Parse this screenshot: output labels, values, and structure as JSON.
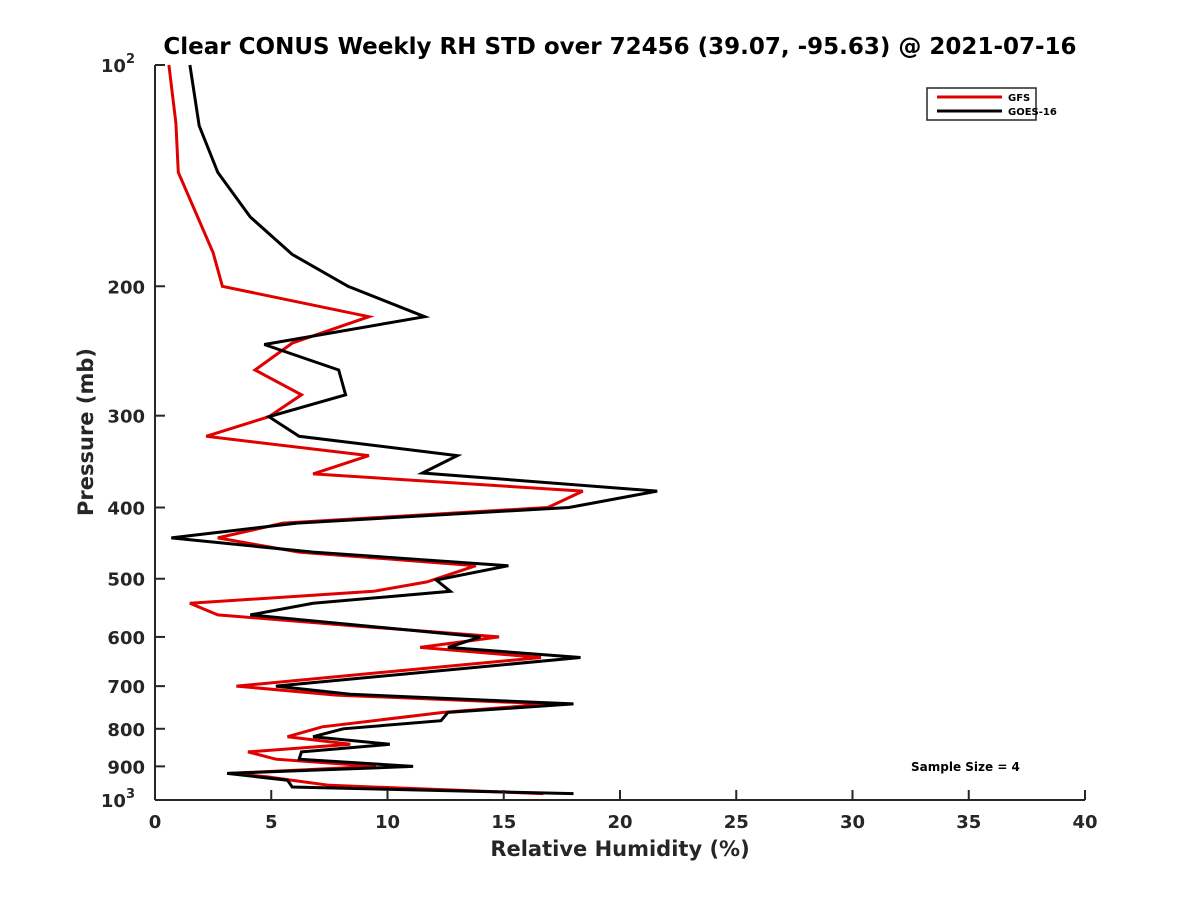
{
  "chart_data": {
    "type": "line",
    "title": "Clear CONUS Weekly RH STD over 72456 (39.07, -95.63) @ 2021-07-16",
    "xlabel": "Relative Humidity (%)",
    "ylabel": "Pressure (mb)",
    "xlim": [
      0,
      40
    ],
    "ylim": [
      100,
      1000
    ],
    "yscale": "log",
    "yreversed": true,
    "grid": false,
    "legend_position": "top-right",
    "x_ticks": [
      0,
      5,
      10,
      15,
      20,
      25,
      30,
      35,
      40
    ],
    "x_tick_labels": [
      "0",
      "5",
      "10",
      "15",
      "20",
      "25",
      "30",
      "35",
      "40"
    ],
    "y_ticks": [
      100,
      200,
      300,
      400,
      500,
      600,
      700,
      800,
      900,
      1000
    ],
    "y_tick_labels": [
      "10^2",
      "200",
      "300",
      "400",
      "500",
      "600",
      "700",
      "800",
      "900",
      "10^3"
    ],
    "annotation": "Sample Size = 4",
    "series": [
      {
        "name": "GFS",
        "color": "#e00000",
        "points": [
          [
            0.6,
            100
          ],
          [
            0.9,
            120
          ],
          [
            1.0,
            140
          ],
          [
            2.5,
            180
          ],
          [
            2.9,
            200
          ],
          [
            9.2,
            220
          ],
          [
            5.9,
            239
          ],
          [
            4.3,
            260
          ],
          [
            6.3,
            281
          ],
          [
            4.9,
            301
          ],
          [
            2.2,
            320
          ],
          [
            9.2,
            340
          ],
          [
            6.8,
            360
          ],
          [
            18.4,
            380
          ],
          [
            16.9,
            400
          ],
          [
            5.5,
            420
          ],
          [
            2.7,
            440
          ],
          [
            6.2,
            460
          ],
          [
            13.8,
            480
          ],
          [
            11.7,
            505
          ],
          [
            9.4,
            520
          ],
          [
            1.5,
            540
          ],
          [
            2.7,
            560
          ],
          [
            8.7,
            580
          ],
          [
            14.8,
            600
          ],
          [
            11.4,
            620
          ],
          [
            16.6,
            640
          ],
          [
            3.5,
            700
          ],
          [
            7.8,
            720
          ],
          [
            17.0,
            740
          ],
          [
            12.4,
            760
          ],
          [
            7.2,
            795
          ],
          [
            5.7,
            820
          ],
          [
            8.4,
            840
          ],
          [
            4.0,
            860
          ],
          [
            5.2,
            880
          ],
          [
            9.5,
            900
          ],
          [
            3.2,
            920
          ],
          [
            4.8,
            930
          ],
          [
            6.4,
            945
          ],
          [
            7.5,
            955
          ],
          [
            16.7,
            980
          ]
        ]
      },
      {
        "name": "GOES-16",
        "color": "#000000",
        "points": [
          [
            1.5,
            100
          ],
          [
            1.9,
            121
          ],
          [
            2.7,
            140
          ],
          [
            4.1,
            161
          ],
          [
            5.9,
            181
          ],
          [
            8.3,
            200
          ],
          [
            11.6,
            220
          ],
          [
            4.7,
            240
          ],
          [
            7.9,
            260
          ],
          [
            8.2,
            281
          ],
          [
            4.9,
            301
          ],
          [
            6.2,
            320
          ],
          [
            13.0,
            340
          ],
          [
            11.5,
            359
          ],
          [
            21.6,
            380
          ],
          [
            17.8,
            400
          ],
          [
            6.1,
            420
          ],
          [
            0.7,
            440
          ],
          [
            6.8,
            460
          ],
          [
            15.2,
            480
          ],
          [
            12.1,
            502
          ],
          [
            12.7,
            520
          ],
          [
            6.8,
            540
          ],
          [
            4.1,
            560
          ],
          [
            14.0,
            600
          ],
          [
            12.6,
            620
          ],
          [
            18.3,
            640
          ],
          [
            5.2,
            700
          ],
          [
            8.4,
            718
          ],
          [
            18.0,
            740
          ],
          [
            12.6,
            760
          ],
          [
            12.3,
            780
          ],
          [
            8.1,
            800
          ],
          [
            6.8,
            820
          ],
          [
            10.1,
            840
          ],
          [
            6.3,
            860
          ],
          [
            6.2,
            880
          ],
          [
            11.1,
            900
          ],
          [
            3.1,
            920
          ],
          [
            5.7,
            940
          ],
          [
            5.9,
            960
          ],
          [
            18.0,
            980
          ]
        ]
      }
    ]
  }
}
